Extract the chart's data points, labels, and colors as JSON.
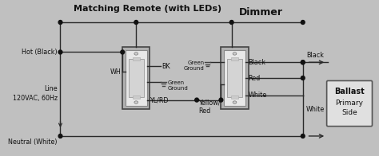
{
  "bg_color": "#c0c0c0",
  "title_remote": "Matching Remote (with LEDs)",
  "title_dimmer": "Dimmer",
  "label_hot": "Hot (Black)",
  "label_line": "Line\n120VAC, 60Hz",
  "label_neutral": "Neutral (White)",
  "label_wh": "WH",
  "label_bk": "BK",
  "label_ylrd": "YL/RD",
  "label_green_ground_left": "Green\nGround",
  "label_green_ground_right": "Green\nGround",
  "label_yellow_red": "Yellow/\nRed",
  "label_black_right": "Black",
  "label_red_right": "Red",
  "label_white_mid": "White",
  "label_black_ballast": "Black",
  "label_white_bottom": "White",
  "label_ballast": "Ballast",
  "label_primary": "Primary\nSide",
  "wire_color": "#2a2a2a",
  "dot_color": "#111111",
  "switch_outer": "#d0d0d0",
  "switch_inner": "#e8e8e8",
  "switch_paddle": "#c8c8c8",
  "box_fill": "#e0e0e0",
  "box_edge": "#555555"
}
